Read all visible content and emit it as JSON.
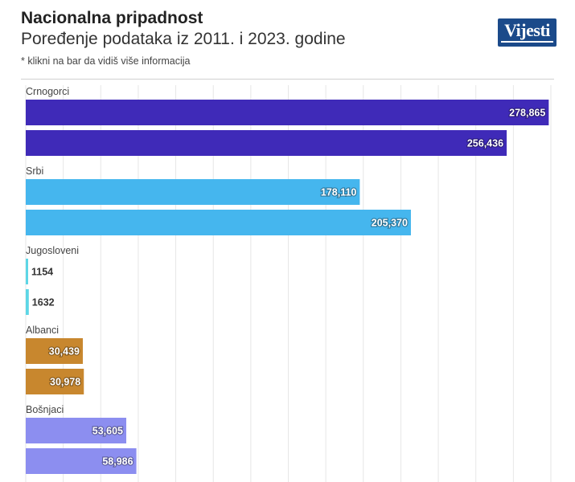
{
  "header": {
    "title": "Nacionalna pripadnost",
    "subtitle": "Poređenje podataka iz 2011. i 2023. godine",
    "note": "* klikni na bar da vidiš više informacija"
  },
  "logo": {
    "text": "Vijesti",
    "color": "#1b4a8a"
  },
  "chart_data": {
    "type": "bar",
    "orientation": "horizontal",
    "title": "Nacionalna pripadnost",
    "subtitle": "Poređenje podataka iz 2011. i 2023. godine",
    "xlim": [
      0,
      280000
    ],
    "grid": true,
    "groups": [
      {
        "label": "Crnogorci",
        "color": "#3f2ab8",
        "values": [
          278865,
          256436
        ],
        "value_labels": [
          "278,865",
          "256,436"
        ]
      },
      {
        "label": "Srbi",
        "color": "#45b6ee",
        "values": [
          178110,
          205370
        ],
        "value_labels": [
          "178,110",
          "205,370"
        ]
      },
      {
        "label": "Jugosloveni",
        "color": "#5dd6e6",
        "values": [
          1154,
          1632
        ],
        "value_labels": [
          "1154",
          "1632"
        ]
      },
      {
        "label": "Albanci",
        "color": "#c8872e",
        "values": [
          30439,
          30978
        ],
        "value_labels": [
          "30,439",
          "30,978"
        ]
      },
      {
        "label": "Bošnjaci",
        "color": "#8c8ef0",
        "values": [
          53605,
          58986
        ],
        "value_labels": [
          "53,605",
          "58,986"
        ]
      }
    ]
  }
}
